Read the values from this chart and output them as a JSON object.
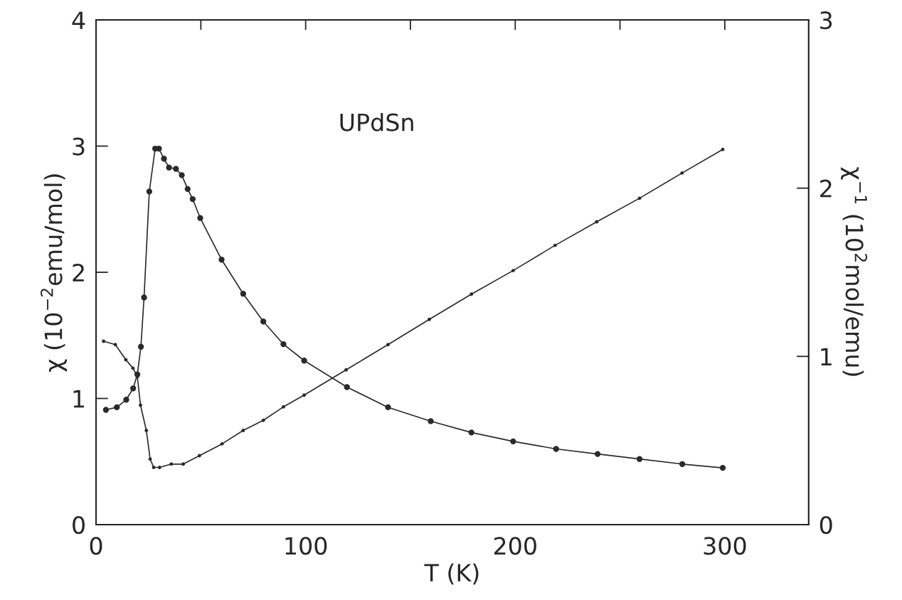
{
  "chart_data": {
    "type": "line",
    "xlabel": "T (K)",
    "ylabel": "χ (10$^{−2}$emu/mol)",
    "y2label": "χ$^{−1}$ (10$^{2}$mol/emu)",
    "annotations": [
      "UPdSn"
    ],
    "xlim": [
      0,
      340
    ],
    "xticks": [
      0,
      {
        "value": 50,
        "label": null
      },
      100,
      {
        "value": 150,
        "label": null
      },
      200,
      {
        "value": 250,
        "label": null
      },
      300
    ],
    "ylim": [
      0,
      4
    ],
    "yticks": [
      0,
      1,
      2,
      3,
      4
    ],
    "y2lim": [
      0,
      3
    ],
    "y2ticks": [
      0,
      1,
      2,
      3
    ],
    "marker": "circle",
    "line_style": "solid",
    "grid": false,
    "legend": false,
    "series": [
      {
        "color": "#2a2a2a",
        "x": [
          4.7,
          9.9,
          14.4,
          17.7,
          19.7,
          21.4,
          22.9,
          25.4,
          28.2,
          30.0,
          32.4,
          34.8,
          38.1,
          40.9,
          43.7,
          46.1,
          49.7,
          59.9,
          70.2,
          79.8,
          89.4,
          99.3,
          119.7,
          139.3,
          159.7,
          179.1,
          199,
          219.5,
          239.3,
          259.3,
          279.7,
          299
        ],
        "values": [
          0.91,
          0.93,
          0.99,
          1.08,
          1.19,
          1.41,
          1.8,
          2.64,
          2.98,
          2.98,
          2.9,
          2.83,
          2.82,
          2.77,
          2.66,
          2.58,
          2.43,
          2.1,
          1.83,
          1.61,
          1.43,
          1.3,
          1.09,
          0.93,
          0.82,
          0.73,
          0.66,
          0.6,
          0.56,
          0.52,
          0.48,
          0.45
        ]
      },
      {
        "color": "#2a2a2a",
        "axis": "y2",
        "x": [
          3.6,
          9.2,
          14.2,
          17.6,
          19.7,
          21.2,
          24.0,
          25.8,
          27.5,
          30.3,
          35.9,
          41.6,
          49.3,
          60.1,
          70.2,
          79.8,
          89.4,
          99.3,
          119.3,
          139.3,
          159,
          179.1,
          199,
          219,
          238.9,
          259.3,
          279.6,
          299
        ],
        "values": [
          1.09,
          1.07,
          0.98,
          0.93,
          0.88,
          0.71,
          0.56,
          0.39,
          0.34,
          0.34,
          0.36,
          0.36,
          0.41,
          0.48,
          0.56,
          0.62,
          0.7,
          0.77,
          0.92,
          1.07,
          1.22,
          1.37,
          1.51,
          1.66,
          1.8,
          1.94,
          2.09,
          2.23
        ]
      }
    ]
  }
}
